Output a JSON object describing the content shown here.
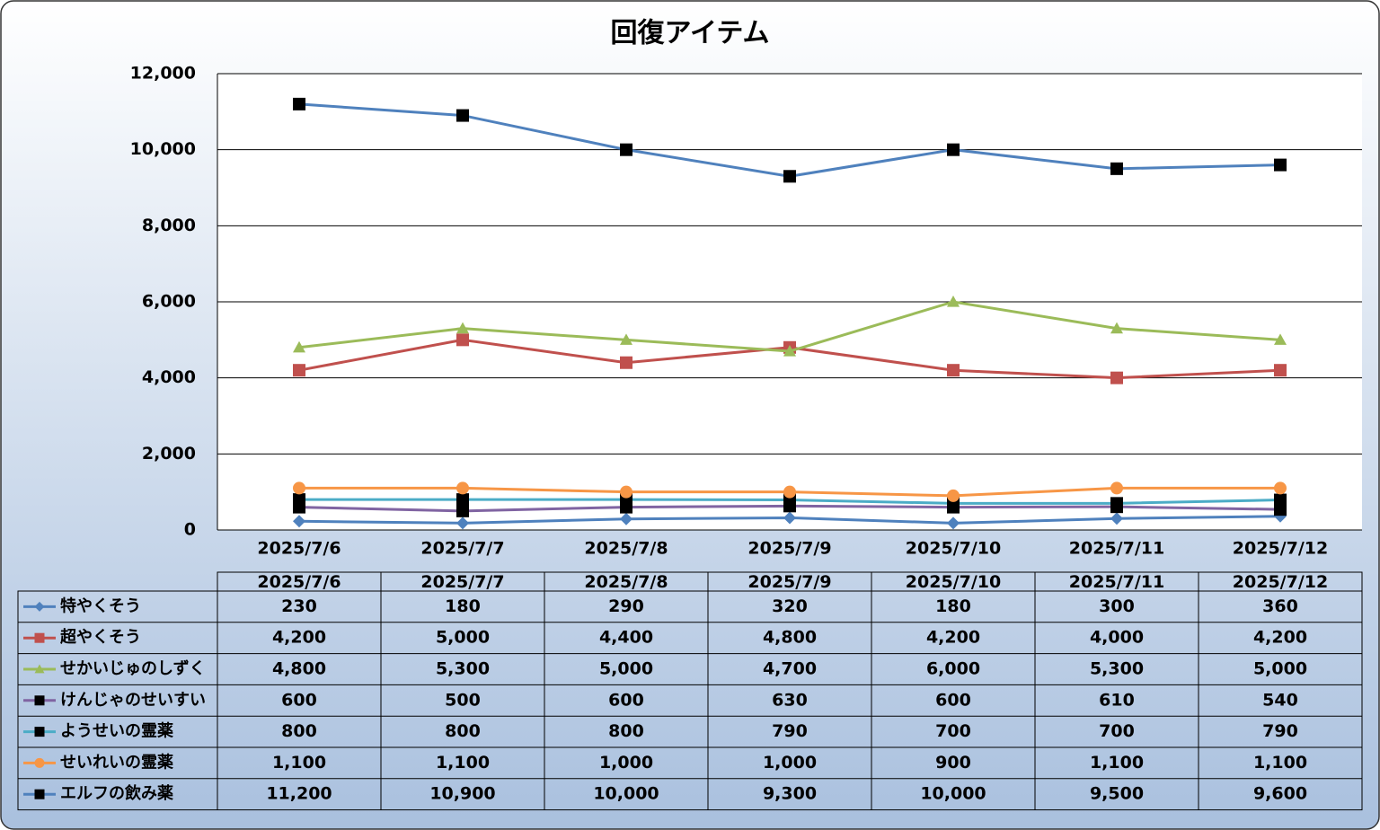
{
  "chart_data": {
    "type": "line",
    "title": "回復アイテム",
    "categories": [
      "2025/7/6",
      "2025/7/7",
      "2025/7/8",
      "2025/7/9",
      "2025/7/10",
      "2025/7/11",
      "2025/7/12"
    ],
    "ylim": [
      0,
      12000
    ],
    "yticks": [
      0,
      {
        "value": 2000,
        "label": "2,000"
      },
      {
        "value": 4000,
        "label": "4,000"
      },
      {
        "value": 6000,
        "label": "6,000"
      },
      {
        "value": 8000,
        "label": "8,000"
      },
      {
        "value": 10000,
        "label": "10,000"
      },
      {
        "value": 12000,
        "label": "12,000"
      }
    ],
    "grid": true,
    "data_table": true,
    "series": [
      {
        "name": "特やくそう",
        "color": "#4f81bd",
        "marker": "diamond",
        "marker_color": "#4f81bd",
        "values": [
          230,
          180,
          290,
          320,
          180,
          300,
          360
        ],
        "value_labels": [
          "230",
          "180",
          "290",
          "320",
          "180",
          "300",
          "360"
        ]
      },
      {
        "name": "超やくそう",
        "color": "#c0504d",
        "marker": "square",
        "marker_color": "#c0504d",
        "values": [
          4200,
          5000,
          4400,
          4800,
          4200,
          4000,
          4200
        ],
        "value_labels": [
          "4,200",
          "5,000",
          "4,400",
          "4,800",
          "4,200",
          "4,000",
          "4,200"
        ]
      },
      {
        "name": "せかいじゅのしずく",
        "color": "#9bbb59",
        "marker": "triangle",
        "marker_color": "#9bbb59",
        "values": [
          4800,
          5300,
          5000,
          4700,
          6000,
          5300,
          5000
        ],
        "value_labels": [
          "4,800",
          "5,300",
          "5,000",
          "4,700",
          "6,000",
          "5,300",
          "5,000"
        ]
      },
      {
        "name": "けんじゃのせいすい",
        "color": "#8064a2",
        "marker": "square",
        "marker_color": "#000000",
        "values": [
          600,
          500,
          600,
          630,
          600,
          610,
          540
        ],
        "value_labels": [
          "600",
          "500",
          "600",
          "630",
          "600",
          "610",
          "540"
        ]
      },
      {
        "name": "ようせいの霊薬",
        "color": "#4bacc6",
        "marker": "square",
        "marker_color": "#000000",
        "values": [
          800,
          800,
          800,
          790,
          700,
          700,
          790
        ],
        "value_labels": [
          "800",
          "800",
          "800",
          "790",
          "700",
          "700",
          "790"
        ]
      },
      {
        "name": "せいれいの霊薬",
        "color": "#f79646",
        "marker": "circle",
        "marker_color": "#f79646",
        "values": [
          1100,
          1100,
          1000,
          1000,
          900,
          1100,
          1100
        ],
        "value_labels": [
          "1,100",
          "1,100",
          "1,000",
          "1,000",
          "900",
          "1,100",
          "1,100"
        ]
      },
      {
        "name": "エルフの飲み薬",
        "color": "#4f81bd",
        "marker": "square",
        "marker_color": "#000000",
        "values": [
          11200,
          10900,
          10000,
          9300,
          10000,
          9500,
          9600
        ],
        "value_labels": [
          "11,200",
          "10,900",
          "10,000",
          "9,300",
          "10,000",
          "9,500",
          "9,600"
        ]
      }
    ]
  }
}
